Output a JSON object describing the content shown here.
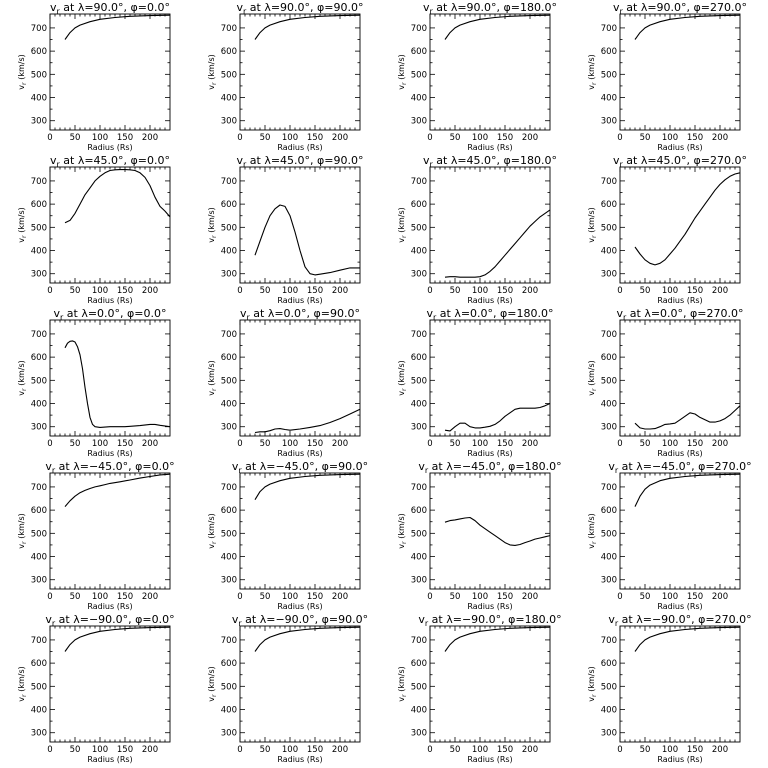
{
  "figure": {
    "y_tick_labels": [
      "300",
      "400",
      "500",
      "600",
      "700"
    ],
    "x_tick_labels": [
      "0",
      "50",
      "100",
      "150",
      "200"
    ]
  },
  "chart_data": [
    {
      "type": "line",
      "title": "vr at λ=90.0°, φ=0.0°",
      "xlabel": "Radius (Rs)",
      "ylabel": "vr (km/s)",
      "xlim": [
        0,
        240
      ],
      "ylim": [
        260,
        760
      ],
      "x": [
        30,
        40,
        50,
        60,
        80,
        100,
        130,
        160,
        200,
        240
      ],
      "values": [
        650,
        680,
        700,
        712,
        727,
        737,
        745,
        750,
        753,
        755
      ]
    },
    {
      "type": "line",
      "title": "vr at λ=90.0°, φ=90.0°",
      "xlabel": "Radius (Rs)",
      "ylabel": "vr (km/s)",
      "xlim": [
        0,
        240
      ],
      "ylim": [
        260,
        760
      ],
      "x": [
        30,
        40,
        50,
        60,
        80,
        100,
        130,
        160,
        200,
        240
      ],
      "values": [
        650,
        680,
        700,
        712,
        727,
        737,
        745,
        750,
        753,
        755
      ]
    },
    {
      "type": "line",
      "title": "vr at λ=90.0°, φ=180.0°",
      "xlabel": "Radius (Rs)",
      "ylabel": "vr (km/s)",
      "xlim": [
        0,
        240
      ],
      "ylim": [
        260,
        760
      ],
      "x": [
        30,
        40,
        50,
        60,
        80,
        100,
        130,
        160,
        200,
        240
      ],
      "values": [
        650,
        680,
        700,
        712,
        727,
        737,
        745,
        750,
        753,
        755
      ]
    },
    {
      "type": "line",
      "title": "vr at λ=90.0°, φ=270.0°",
      "xlabel": "Radius (Rs)",
      "ylabel": "vr (km/s)",
      "xlim": [
        0,
        240
      ],
      "ylim": [
        260,
        760
      ],
      "x": [
        30,
        40,
        50,
        60,
        80,
        100,
        130,
        160,
        200,
        240
      ],
      "values": [
        650,
        680,
        700,
        712,
        727,
        737,
        745,
        750,
        753,
        755
      ]
    },
    {
      "type": "line",
      "title": "vr at λ=45.0°, φ=0.0°",
      "xlabel": "Radius (Rs)",
      "ylabel": "vr (km/s)",
      "xlim": [
        0,
        240
      ],
      "ylim": [
        260,
        760
      ],
      "x": [
        30,
        40,
        50,
        60,
        70,
        80,
        90,
        100,
        110,
        120,
        130,
        140,
        150,
        160,
        170,
        180,
        190,
        200,
        210,
        220,
        230,
        240
      ],
      "values": [
        520,
        530,
        560,
        600,
        640,
        670,
        700,
        720,
        735,
        745,
        748,
        749,
        749,
        748,
        745,
        735,
        715,
        680,
        630,
        590,
        570,
        545
      ]
    },
    {
      "type": "line",
      "title": "vr at λ=45.0°, φ=90.0°",
      "xlabel": "Radius (Rs)",
      "ylabel": "vr (km/s)",
      "xlim": [
        0,
        240
      ],
      "ylim": [
        260,
        760
      ],
      "x": [
        30,
        40,
        50,
        60,
        70,
        80,
        90,
        100,
        110,
        120,
        130,
        140,
        150,
        160,
        180,
        200,
        220,
        240
      ],
      "values": [
        380,
        440,
        500,
        550,
        580,
        596,
        590,
        550,
        480,
        400,
        330,
        300,
        295,
        298,
        305,
        315,
        325,
        325
      ]
    },
    {
      "type": "line",
      "title": "vr at λ=45.0°, φ=180.0°",
      "xlabel": "Radius (Rs)",
      "ylabel": "vr (km/s)",
      "xlim": [
        0,
        240
      ],
      "ylim": [
        260,
        760
      ],
      "x": [
        30,
        40,
        50,
        60,
        70,
        80,
        90,
        100,
        110,
        120,
        130,
        140,
        150,
        160,
        170,
        180,
        190,
        200,
        210,
        220,
        230,
        240
      ],
      "values": [
        285,
        287,
        287,
        285,
        285,
        285,
        285,
        287,
        295,
        310,
        330,
        355,
        380,
        405,
        430,
        455,
        480,
        505,
        525,
        545,
        560,
        575
      ]
    },
    {
      "type": "line",
      "title": "vr at λ=45.0°, φ=270.0°",
      "xlabel": "Radius (Rs)",
      "ylabel": "vr (km/s)",
      "xlim": [
        0,
        240
      ],
      "ylim": [
        260,
        760
      ],
      "x": [
        30,
        40,
        50,
        60,
        70,
        80,
        90,
        100,
        110,
        120,
        130,
        140,
        150,
        160,
        170,
        180,
        190,
        200,
        210,
        220,
        230,
        240
      ],
      "values": [
        415,
        385,
        360,
        345,
        338,
        345,
        360,
        385,
        410,
        440,
        470,
        505,
        540,
        570,
        600,
        630,
        660,
        685,
        705,
        720,
        730,
        735
      ]
    },
    {
      "type": "line",
      "title": "vr at λ=0.0°, φ=0.0°",
      "xlabel": "Radius (Rs)",
      "ylabel": "vr (km/s)",
      "xlim": [
        0,
        240
      ],
      "ylim": [
        260,
        760
      ],
      "x": [
        30,
        35,
        40,
        45,
        50,
        55,
        60,
        65,
        70,
        75,
        80,
        85,
        90,
        100,
        120,
        150,
        180,
        200,
        210,
        220,
        240
      ],
      "values": [
        640,
        660,
        668,
        670,
        665,
        645,
        610,
        550,
        470,
        400,
        340,
        310,
        300,
        297,
        300,
        300,
        305,
        310,
        310,
        306,
        300
      ]
    },
    {
      "type": "line",
      "title": "vr at λ=0.0°, φ=90.0°",
      "xlabel": "Radius (Rs)",
      "ylabel": "vr (km/s)",
      "xlim": [
        0,
        240
      ],
      "ylim": [
        260,
        760
      ],
      "x": [
        30,
        40,
        50,
        60,
        70,
        80,
        90,
        100,
        120,
        140,
        160,
        180,
        200,
        220,
        240
      ],
      "values": [
        275,
        278,
        278,
        283,
        290,
        292,
        288,
        285,
        290,
        297,
        305,
        318,
        335,
        355,
        375
      ]
    },
    {
      "type": "line",
      "title": "vr at λ=0.0°, φ=180.0°",
      "xlabel": "Radius (Rs)",
      "ylabel": "vr (km/s)",
      "xlim": [
        0,
        240
      ],
      "ylim": [
        260,
        760
      ],
      "x": [
        30,
        40,
        50,
        60,
        70,
        80,
        90,
        100,
        110,
        120,
        130,
        140,
        150,
        160,
        170,
        180,
        190,
        200,
        210,
        220,
        230,
        240
      ],
      "values": [
        285,
        282,
        300,
        315,
        315,
        300,
        295,
        295,
        298,
        302,
        310,
        325,
        345,
        360,
        375,
        380,
        380,
        380,
        380,
        383,
        390,
        400
      ]
    },
    {
      "type": "line",
      "title": "vr at λ=0.0°, φ=270.0°",
      "xlabel": "Radius (Rs)",
      "ylabel": "vr (km/s)",
      "xlim": [
        0,
        240
      ],
      "ylim": [
        260,
        760
      ],
      "x": [
        30,
        40,
        50,
        60,
        70,
        80,
        90,
        100,
        110,
        120,
        130,
        140,
        150,
        160,
        170,
        180,
        190,
        200,
        210,
        220,
        230,
        240
      ],
      "values": [
        315,
        295,
        290,
        290,
        292,
        300,
        310,
        312,
        315,
        330,
        345,
        360,
        355,
        340,
        330,
        320,
        320,
        325,
        335,
        350,
        370,
        390
      ]
    },
    {
      "type": "line",
      "title": "vr at λ=−45.0°, φ=0.0°",
      "xlabel": "Radius (Rs)",
      "ylabel": "vr (km/s)",
      "xlim": [
        0,
        240
      ],
      "ylim": [
        260,
        760
      ],
      "x": [
        30,
        40,
        50,
        60,
        70,
        80,
        90,
        100,
        110,
        120,
        140,
        160,
        180,
        200,
        220,
        240
      ],
      "values": [
        615,
        640,
        660,
        675,
        685,
        693,
        700,
        705,
        710,
        715,
        722,
        730,
        738,
        745,
        752,
        755
      ]
    },
    {
      "type": "line",
      "title": "vr at λ=−45.0°, φ=90.0°",
      "xlabel": "Radius (Rs)",
      "ylabel": "vr (km/s)",
      "xlim": [
        0,
        240
      ],
      "ylim": [
        260,
        760
      ],
      "x": [
        30,
        40,
        50,
        60,
        80,
        100,
        130,
        160,
        200,
        240
      ],
      "values": [
        645,
        680,
        700,
        712,
        727,
        737,
        745,
        750,
        753,
        755
      ]
    },
    {
      "type": "line",
      "title": "vr at λ=−45.0°, φ=180.0°",
      "xlabel": "Radius (Rs)",
      "ylabel": "vr (km/s)",
      "xlim": [
        0,
        240
      ],
      "ylim": [
        260,
        760
      ],
      "x": [
        30,
        40,
        50,
        60,
        70,
        80,
        90,
        100,
        110,
        120,
        130,
        140,
        150,
        160,
        170,
        180,
        190,
        200,
        210,
        220,
        230,
        240
      ],
      "values": [
        548,
        555,
        558,
        562,
        566,
        568,
        555,
        535,
        520,
        505,
        490,
        475,
        460,
        450,
        448,
        452,
        460,
        467,
        475,
        480,
        485,
        490
      ]
    },
    {
      "type": "line",
      "title": "vr at λ=−45.0°, φ=270.0°",
      "xlabel": "Radius (Rs)",
      "ylabel": "vr (km/s)",
      "xlim": [
        0,
        240
      ],
      "ylim": [
        260,
        760
      ],
      "x": [
        30,
        40,
        50,
        60,
        80,
        100,
        130,
        160,
        200,
        240
      ],
      "values": [
        615,
        660,
        690,
        708,
        727,
        737,
        745,
        750,
        753,
        755
      ]
    },
    {
      "type": "line",
      "title": "vr at λ=−90.0°, φ=0.0°",
      "xlabel": "Radius (Rs)",
      "ylabel": "vr (km/s)",
      "xlim": [
        0,
        240
      ],
      "ylim": [
        260,
        760
      ],
      "x": [
        30,
        40,
        50,
        60,
        80,
        100,
        130,
        160,
        200,
        240
      ],
      "values": [
        650,
        680,
        700,
        712,
        727,
        737,
        745,
        750,
        753,
        755
      ]
    },
    {
      "type": "line",
      "title": "vr at λ=−90.0°, φ=90.0°",
      "xlabel": "Radius (Rs)",
      "ylabel": "vr (km/s)",
      "xlim": [
        0,
        240
      ],
      "ylim": [
        260,
        760
      ],
      "x": [
        30,
        40,
        50,
        60,
        80,
        100,
        130,
        160,
        200,
        240
      ],
      "values": [
        650,
        680,
        700,
        712,
        727,
        737,
        745,
        750,
        753,
        755
      ]
    },
    {
      "type": "line",
      "title": "vr at λ=−90.0°, φ=180.0°",
      "xlabel": "Radius (Rs)",
      "ylabel": "vr (km/s)",
      "xlim": [
        0,
        240
      ],
      "ylim": [
        260,
        760
      ],
      "x": [
        30,
        40,
        50,
        60,
        80,
        100,
        130,
        160,
        200,
        240
      ],
      "values": [
        650,
        680,
        700,
        712,
        727,
        737,
        745,
        750,
        753,
        755
      ]
    },
    {
      "type": "line",
      "title": "vr at λ=−90.0°, φ=270.0°",
      "xlabel": "Radius (Rs)",
      "ylabel": "vr (km/s)",
      "xlim": [
        0,
        240
      ],
      "ylim": [
        260,
        760
      ],
      "x": [
        30,
        40,
        50,
        60,
        80,
        100,
        130,
        160,
        200,
        240
      ],
      "values": [
        650,
        680,
        700,
        712,
        727,
        737,
        745,
        750,
        753,
        755
      ]
    }
  ]
}
